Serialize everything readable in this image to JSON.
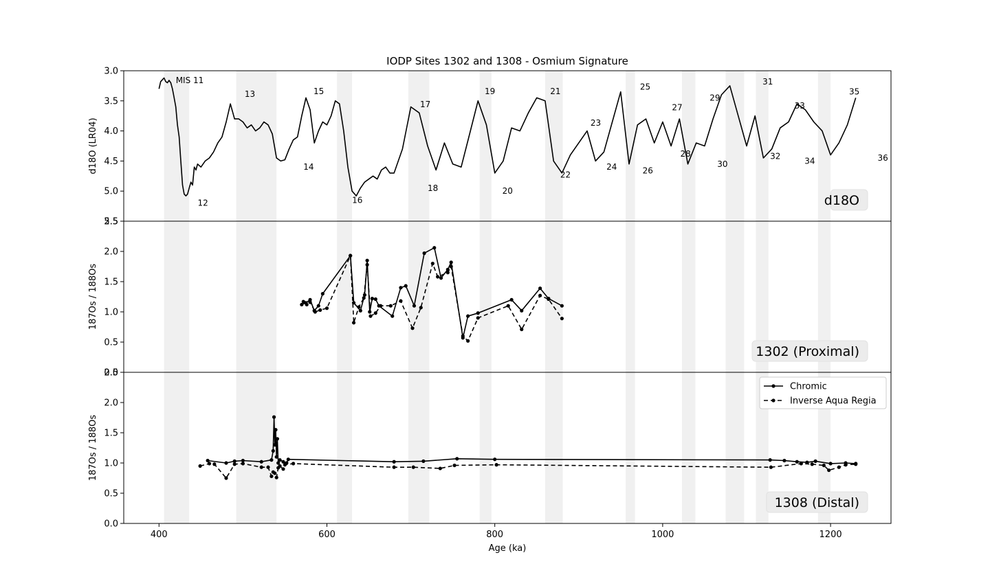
{
  "chart_data": {
    "type": "line",
    "title": "IODP Sites 1302 and 1308 - Osmium Signature",
    "xlabel": "Age (ka)",
    "xlim": [
      358,
      1272
    ],
    "xticks": [
      "400",
      "600",
      "800",
      "1000",
      "1200"
    ],
    "shaded_intervals": [
      [
        406,
        436
      ],
      [
        492,
        540
      ],
      [
        612,
        630
      ],
      [
        697,
        722
      ],
      [
        782,
        796
      ],
      [
        860,
        881
      ],
      [
        956,
        967
      ],
      [
        1023,
        1039
      ],
      [
        1075,
        1097
      ],
      [
        1111,
        1126
      ],
      [
        1185,
        1200
      ]
    ],
    "panels": [
      {
        "label": "d18O",
        "ylabel": "d18O (LR04)",
        "ylim": [
          5.5,
          3.0
        ],
        "yticks": [
          "3.0",
          "3.5",
          "4.0",
          "4.5",
          "5.0",
          "5.5"
        ],
        "mis_labels": [
          {
            "text": "MIS 11",
            "x": 420,
            "y": 3.16
          },
          {
            "text": "12",
            "x": 446,
            "y": 5.2
          },
          {
            "text": "13",
            "x": 502,
            "y": 3.39
          },
          {
            "text": "14",
            "x": 572,
            "y": 4.6
          },
          {
            "text": "15",
            "x": 584,
            "y": 3.34
          },
          {
            "text": "16",
            "x": 630,
            "y": 5.15
          },
          {
            "text": "17",
            "x": 711,
            "y": 3.56
          },
          {
            "text": "18",
            "x": 720,
            "y": 4.95
          },
          {
            "text": "19",
            "x": 788,
            "y": 3.34
          },
          {
            "text": "20",
            "x": 809,
            "y": 5.0
          },
          {
            "text": "21",
            "x": 866,
            "y": 3.34
          },
          {
            "text": "22",
            "x": 878,
            "y": 4.73
          },
          {
            "text": "23",
            "x": 914,
            "y": 3.87
          },
          {
            "text": "24",
            "x": 933,
            "y": 4.6
          },
          {
            "text": "25",
            "x": 973,
            "y": 3.27
          },
          {
            "text": "26",
            "x": 976,
            "y": 4.66
          },
          {
            "text": "27",
            "x": 1011,
            "y": 3.61
          },
          {
            "text": "28",
            "x": 1021,
            "y": 4.38
          },
          {
            "text": "29",
            "x": 1056,
            "y": 3.45
          },
          {
            "text": "30",
            "x": 1065,
            "y": 4.55
          },
          {
            "text": "31",
            "x": 1119,
            "y": 3.18
          },
          {
            "text": "32",
            "x": 1128,
            "y": 4.42
          },
          {
            "text": "33",
            "x": 1157,
            "y": 3.58
          },
          {
            "text": "34",
            "x": 1169,
            "y": 4.5
          },
          {
            "text": "35",
            "x": 1222,
            "y": 3.35
          },
          {
            "text": "36",
            "x": 1256,
            "y": 4.45
          }
        ],
        "series": [
          {
            "name": "d18O",
            "style": "solid",
            "marker": false,
            "x": [
              400,
              402,
              404,
              406,
              408,
              410,
              412,
              414,
              416,
              418,
              420,
              422,
              424,
              426,
              428,
              430,
              432,
              434,
              436,
              438,
              440,
              442,
              444,
              446,
              450,
              455,
              460,
              465,
              470,
              475,
              480,
              485,
              490,
              495,
              500,
              505,
              510,
              515,
              520,
              525,
              530,
              535,
              540,
              545,
              550,
              555,
              560,
              565,
              570,
              575,
              580,
              585,
              590,
              595,
              600,
              605,
              610,
              615,
              620,
              625,
              630,
              635,
              640,
              645,
              650,
              655,
              660,
              665,
              670,
              675,
              680,
              690,
              700,
              710,
              720,
              730,
              740,
              750,
              760,
              770,
              780,
              790,
              800,
              810,
              820,
              830,
              840,
              850,
              860,
              870,
              880,
              890,
              900,
              910,
              920,
              930,
              940,
              950,
              960,
              970,
              980,
              990,
              1000,
              1010,
              1020,
              1030,
              1040,
              1050,
              1060,
              1070,
              1080,
              1090,
              1100,
              1110,
              1120,
              1130,
              1140,
              1150,
              1160,
              1170,
              1180,
              1190,
              1200,
              1210,
              1220,
              1230
            ],
            "y": [
              3.3,
              3.18,
              3.15,
              3.12,
              3.18,
              3.2,
              3.16,
              3.2,
              3.3,
              3.45,
              3.6,
              3.9,
              4.1,
              4.5,
              4.9,
              5.05,
              5.08,
              5.05,
              4.95,
              4.85,
              4.9,
              4.6,
              4.65,
              4.55,
              4.6,
              4.5,
              4.45,
              4.35,
              4.2,
              4.1,
              3.85,
              3.55,
              3.8,
              3.8,
              3.85,
              3.95,
              3.9,
              4.0,
              3.95,
              3.85,
              3.9,
              4.05,
              4.45,
              4.5,
              4.48,
              4.3,
              4.15,
              4.1,
              3.75,
              3.45,
              3.65,
              4.2,
              4.0,
              3.85,
              3.9,
              3.75,
              3.5,
              3.55,
              4.0,
              4.6,
              5.0,
              5.08,
              4.95,
              4.85,
              4.8,
              4.75,
              4.8,
              4.65,
              4.6,
              4.7,
              4.7,
              4.3,
              3.6,
              3.7,
              4.25,
              4.65,
              4.2,
              4.55,
              4.6,
              4.05,
              3.5,
              3.9,
              4.7,
              4.5,
              3.95,
              4.0,
              3.7,
              3.45,
              3.5,
              4.5,
              4.7,
              4.4,
              4.2,
              4.0,
              4.5,
              4.35,
              3.85,
              3.35,
              4.55,
              3.9,
              3.8,
              4.2,
              3.85,
              4.25,
              3.8,
              4.55,
              4.2,
              4.25,
              3.8,
              3.4,
              3.25,
              3.75,
              4.25,
              3.75,
              4.45,
              4.3,
              3.95,
              3.85,
              3.55,
              3.65,
              3.85,
              4.0,
              4.4,
              4.2,
              3.9,
              3.45
            ]
          }
        ]
      },
      {
        "label": "1302 (Proximal)",
        "ylabel": "187Os / 188Os",
        "ylim": [
          0.0,
          2.5
        ],
        "yticks": [
          "0.0",
          "0.5",
          "1.0",
          "1.5",
          "2.0",
          "2.5"
        ],
        "series": [
          {
            "name": "Chromic",
            "style": "solid",
            "marker": true,
            "x": [
              570,
              575,
              580,
              585,
              590,
              595,
              628,
              632,
              640,
              645,
              648,
              651,
              654,
              658,
              662,
              678,
              688,
              694,
              704,
              716,
              728,
              736,
              744,
              748,
              762,
              768,
              780,
              820,
              832,
              854,
              864,
              880
            ],
            "y": [
              1.12,
              1.15,
              1.2,
              1.02,
              1.1,
              1.3,
              1.93,
              1.15,
              1.02,
              1.28,
              1.85,
              1.0,
              1.22,
              1.21,
              1.1,
              0.93,
              1.4,
              1.43,
              1.1,
              1.97,
              2.06,
              1.56,
              1.7,
              1.82,
              0.57,
              0.93,
              0.98,
              1.2,
              1.02,
              1.39,
              1.22,
              1.1
            ]
          },
          {
            "name": "Inverse Aqua Regia",
            "style": "dashed",
            "marker": true,
            "x": [
              572,
              576,
              580,
              586,
              592,
              600,
              628,
              632,
              638,
              644,
              648,
              652,
              658,
              664,
              676,
              688,
              702,
              712,
              726,
              732,
              744,
              748,
              762,
              768,
              780,
              816,
              832,
              854,
              864,
              880
            ],
            "y": [
              1.17,
              1.12,
              1.16,
              1.0,
              1.03,
              1.06,
              1.93,
              0.82,
              1.08,
              1.23,
              1.78,
              0.93,
              0.98,
              1.1,
              1.1,
              1.18,
              0.73,
              1.07,
              1.8,
              1.58,
              1.65,
              1.75,
              0.6,
              0.52,
              0.9,
              1.1,
              0.71,
              1.27,
              1.21,
              0.89
            ]
          }
        ]
      },
      {
        "label": "1308 (Distal)",
        "ylabel": "187Os / 188Os",
        "ylim": [
          0.0,
          2.5
        ],
        "yticks": [
          "0.0",
          "0.5",
          "1.0",
          "1.5",
          "2.0",
          "2.5"
        ],
        "series": [
          {
            "name": "Chromic",
            "style": "solid",
            "marker": true,
            "x": [
              458,
              480,
              490,
              500,
              522,
              534,
              536,
              537,
              538,
              539,
              540,
              541,
              542,
              544,
              548,
              552,
              554,
              680,
              715,
              755,
              800,
              1128,
              1145,
              1160,
              1172,
              1182,
              1200,
              1218,
              1230
            ],
            "y": [
              1.04,
              1.0,
              1.03,
              1.04,
              1.02,
              1.05,
              1.2,
              1.76,
              1.3,
              1.55,
              1.1,
              1.4,
              1.0,
              1.05,
              1.02,
              1.0,
              1.06,
              1.02,
              1.03,
              1.07,
              1.06,
              1.05,
              1.04,
              1.02,
              1.01,
              1.03,
              0.99,
              1.0,
              0.99
            ]
          },
          {
            "name": "Inverse Aqua Regia",
            "style": "dashed",
            "marker": true,
            "x": [
              449,
              460,
              466,
              480,
              490,
              500,
              522,
              530,
              534,
              536,
              538,
              540,
              542,
              544,
              548,
              550,
              560,
              680,
              703,
              735,
              752,
              802,
              1129,
              1165,
              1178,
              1192,
              1198,
              1210,
              1218,
              1230
            ],
            "y": [
              0.95,
              0.99,
              0.98,
              0.75,
              0.98,
              0.99,
              0.93,
              0.93,
              0.78,
              0.85,
              0.83,
              0.76,
              0.92,
              0.95,
              0.9,
              0.97,
              0.99,
              0.93,
              0.93,
              0.91,
              0.96,
              0.97,
              0.93,
              0.99,
              0.98,
              0.96,
              0.88,
              0.93,
              0.97,
              0.98
            ]
          }
        ]
      }
    ],
    "legend": {
      "placement": "top-right",
      "panel": 2,
      "entries": [
        "Chromic",
        "Inverse Aqua Regia"
      ]
    }
  }
}
